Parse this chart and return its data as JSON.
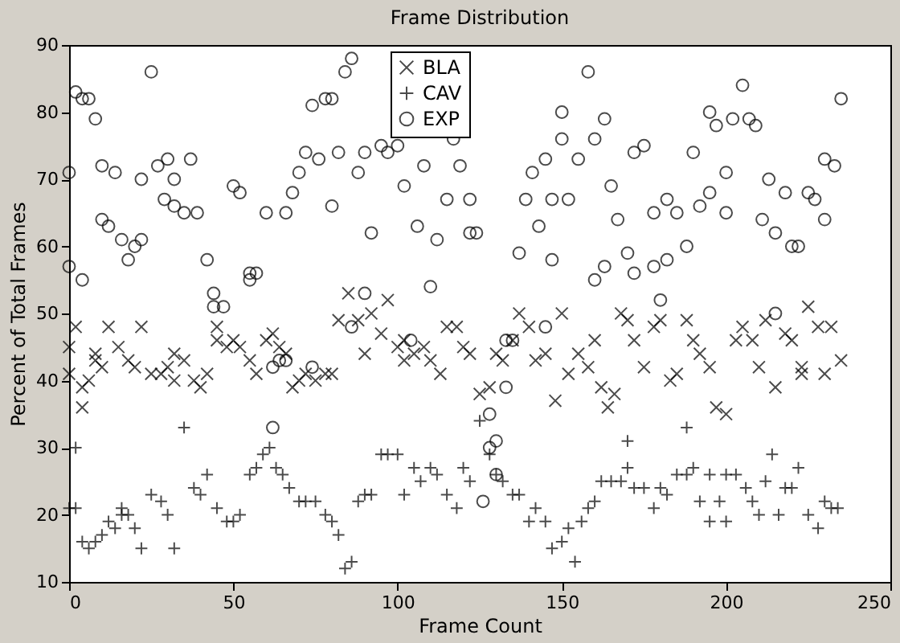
{
  "chart_data": {
    "type": "scatter",
    "title": "Frame Distribution",
    "xlabel": "Frame Count",
    "ylabel": "Percent of Total Frames",
    "xlim": [
      0,
      250
    ],
    "xticks": [
      0,
      50,
      100,
      150,
      200,
      250
    ],
    "ylim": [
      10,
      90
    ],
    "yticks": [
      10,
      20,
      30,
      40,
      50,
      60,
      70,
      80,
      90
    ],
    "grid": false,
    "legend": "top",
    "series": [
      {
        "name": "BLA",
        "color": "#000000",
        "marker": "x",
        "x": [
          0,
          0,
          2,
          4,
          4,
          6,
          8,
          8,
          10,
          12,
          15,
          18,
          20,
          22,
          25,
          28,
          30,
          32,
          32,
          35,
          38,
          40,
          42,
          45,
          45,
          48,
          50,
          52,
          55,
          57,
          60,
          62,
          64,
          66,
          68,
          70,
          72,
          75,
          78,
          80,
          82,
          85,
          88,
          90,
          92,
          95,
          97,
          100,
          102,
          102,
          105,
          108,
          110,
          113,
          115,
          118,
          120,
          122,
          125,
          128,
          130,
          132,
          135,
          137,
          140,
          142,
          145,
          148,
          150,
          152,
          155,
          158,
          160,
          162,
          164,
          166,
          168,
          170,
          172,
          175,
          178,
          180,
          183,
          185,
          188,
          190,
          192,
          195,
          197,
          200,
          203,
          205,
          208,
          210,
          212,
          215,
          218,
          220,
          223,
          223,
          225,
          228,
          230,
          232,
          235
        ],
        "values": [
          45,
          41,
          48,
          36,
          39,
          40,
          44,
          43,
          42,
          48,
          45,
          43,
          42,
          48,
          41,
          41,
          42,
          44,
          40,
          43,
          40,
          39,
          41,
          48,
          46,
          45,
          46,
          45,
          43,
          41,
          46,
          47,
          45,
          44,
          39,
          40,
          41,
          40,
          41,
          41,
          49,
          53,
          49,
          44,
          50,
          47,
          52,
          45,
          43,
          46,
          44,
          45,
          43,
          41,
          48,
          48,
          45,
          44,
          38,
          39,
          44,
          43,
          46,
          50,
          48,
          43,
          44,
          37,
          50,
          41,
          44,
          42,
          46,
          39,
          36,
          38,
          50,
          49,
          46,
          42,
          48,
          49,
          40,
          41,
          49,
          46,
          44,
          42,
          36,
          35,
          46,
          48,
          46,
          42,
          49,
          39,
          47,
          46,
          41,
          42,
          51,
          48,
          41,
          48,
          43
        ]
      },
      {
        "name": "CAV",
        "color": "#000000",
        "marker": "cross",
        "x": [
          0,
          2,
          2,
          4,
          6,
          8,
          10,
          12,
          14,
          16,
          16,
          18,
          20,
          22,
          25,
          28,
          30,
          32,
          35,
          38,
          40,
          42,
          45,
          48,
          50,
          52,
          55,
          57,
          59,
          61,
          63,
          65,
          67,
          70,
          72,
          75,
          78,
          80,
          82,
          84,
          86,
          88,
          90,
          92,
          95,
          97,
          100,
          102,
          105,
          107,
          110,
          112,
          115,
          118,
          120,
          122,
          125,
          128,
          130,
          132,
          135,
          137,
          140,
          142,
          145,
          147,
          150,
          152,
          154,
          156,
          158,
          160,
          162,
          165,
          168,
          170,
          170,
          172,
          175,
          178,
          180,
          182,
          185,
          188,
          188,
          190,
          192,
          195,
          195,
          198,
          200,
          200,
          203,
          206,
          208,
          210,
          212,
          214,
          216,
          218,
          220,
          222,
          225,
          228,
          230,
          232,
          234
        ],
        "values": [
          21,
          30,
          21,
          16,
          15,
          16,
          17,
          19,
          18,
          21,
          20,
          20,
          18,
          15,
          23,
          22,
          20,
          15,
          33,
          24,
          23,
          26,
          21,
          19,
          19,
          20,
          26,
          27,
          29,
          30,
          27,
          26,
          24,
          22,
          22,
          22,
          20,
          19,
          17,
          12,
          13,
          22,
          23,
          23,
          29,
          29,
          29,
          23,
          27,
          25,
          27,
          26,
          23,
          21,
          27,
          25,
          34,
          29,
          26,
          25,
          23,
          23,
          19,
          21,
          19,
          15,
          16,
          18,
          13,
          19,
          21,
          22,
          25,
          25,
          25,
          27,
          31,
          24,
          24,
          21,
          24,
          23,
          26,
          33,
          26,
          27,
          22,
          19,
          26,
          22,
          19,
          26,
          26,
          24,
          22,
          20,
          25,
          29,
          20,
          24,
          24,
          27,
          20,
          18,
          22,
          21,
          21
        ]
      },
      {
        "name": "EXP",
        "color": "#000000",
        "marker": "circle",
        "x": [
          0,
          0,
          2,
          4,
          4,
          6,
          8,
          10,
          10,
          12,
          14,
          16,
          18,
          20,
          22,
          22,
          25,
          27,
          29,
          30,
          32,
          32,
          35,
          37,
          39,
          42,
          44,
          44,
          47,
          50,
          52,
          55,
          55,
          57,
          60,
          62,
          62,
          64,
          66,
          66,
          68,
          70,
          72,
          74,
          74,
          76,
          78,
          80,
          80,
          82,
          84,
          86,
          86,
          88,
          90,
          90,
          92,
          95,
          97,
          100,
          102,
          104,
          106,
          108,
          110,
          112,
          115,
          117,
          119,
          122,
          122,
          124,
          126,
          128,
          128,
          130,
          130,
          133,
          133,
          135,
          137,
          139,
          141,
          143,
          145,
          145,
          147,
          147,
          150,
          150,
          152,
          155,
          158,
          160,
          160,
          163,
          163,
          165,
          167,
          170,
          172,
          172,
          175,
          178,
          178,
          180,
          182,
          182,
          185,
          188,
          190,
          192,
          195,
          195,
          197,
          200,
          200,
          202,
          205,
          207,
          209,
          211,
          213,
          215,
          215,
          218,
          220,
          222,
          225,
          227,
          230,
          230,
          233,
          235
        ],
        "values": [
          57,
          71,
          83,
          82,
          55,
          82,
          79,
          64,
          72,
          63,
          71,
          61,
          58,
          60,
          70,
          61,
          86,
          72,
          67,
          73,
          70,
          66,
          65,
          73,
          65,
          58,
          53,
          51,
          51,
          69,
          68,
          55,
          56,
          56,
          65,
          42,
          33,
          43,
          43,
          65,
          68,
          71,
          74,
          81,
          42,
          73,
          82,
          82,
          66,
          74,
          86,
          88,
          48,
          71,
          74,
          53,
          62,
          75,
          74,
          75,
          69,
          46,
          63,
          72,
          54,
          61,
          67,
          76,
          72,
          62,
          67,
          62,
          22,
          35,
          30,
          31,
          26,
          39,
          46,
          46,
          59,
          67,
          71,
          63,
          73,
          48,
          58,
          67,
          76,
          80,
          67,
          73,
          86,
          76,
          55,
          79,
          57,
          69,
          64,
          59,
          74,
          56,
          75,
          57,
          65,
          52,
          58,
          67,
          65,
          60,
          74,
          66,
          80,
          68,
          78,
          71,
          65,
          79,
          84,
          79,
          78,
          64,
          70,
          62,
          50,
          68,
          60,
          60,
          68,
          67,
          73,
          64,
          72,
          82
        ]
      }
    ]
  }
}
